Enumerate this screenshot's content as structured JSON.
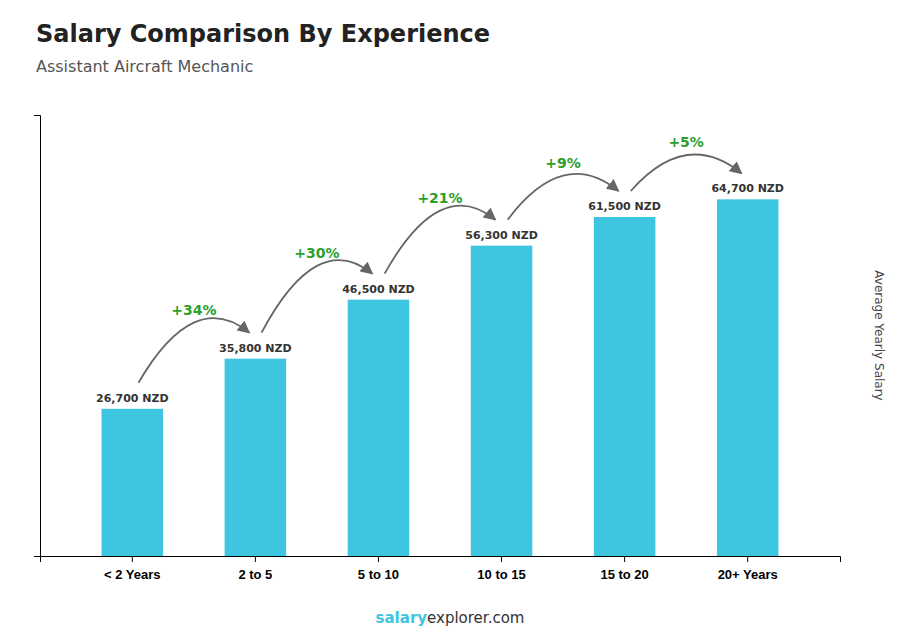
{
  "chart_data": {
    "type": "bar",
    "title": "Salary Comparison By Experience",
    "subtitle": "Assistant Aircraft Mechanic",
    "categories": [
      "< 2 Years",
      "2 to 5",
      "5 to 10",
      "10 to 15",
      "15 to 20",
      "20+ Years"
    ],
    "values": [
      26700,
      35800,
      46500,
      56300,
      61500,
      64700
    ],
    "value_labels": [
      "26,700 NZD",
      "35,800 NZD",
      "46,500 NZD",
      "56,300 NZD",
      "61,500 NZD",
      "64,700 NZD"
    ],
    "data_labels": true,
    "color": "#3ec6e0",
    "ylabel": "Average Yearly Salary",
    "ylim": [
      0,
      80000
    ],
    "tick_labels": "x",
    "grid": false,
    "annotations": [
      "+34%",
      "+30%",
      "+21%",
      "+9%",
      "+5%"
    ],
    "footer": [
      "salary",
      "explorer.com"
    ]
  }
}
